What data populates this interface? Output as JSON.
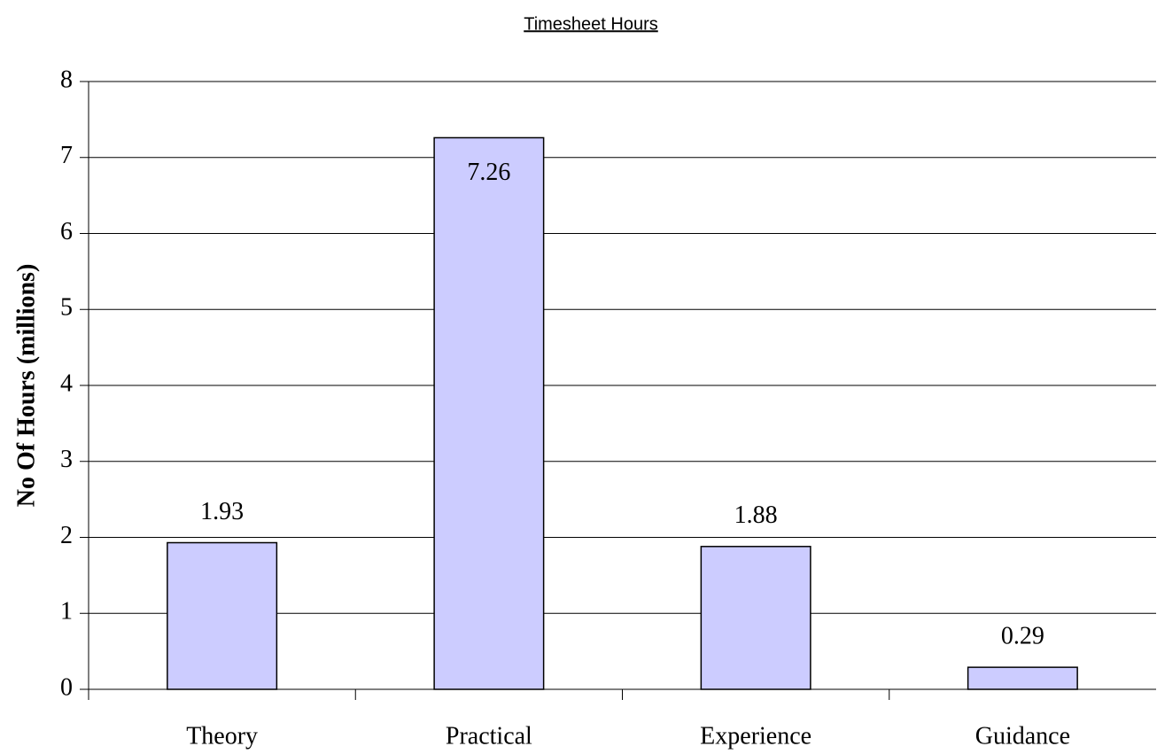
{
  "chart_data": {
    "type": "bar",
    "title": "Timesheet Hours",
    "y_label": "No Of Hours (millions)",
    "categories": [
      "Theory",
      "Practical",
      "Experience",
      "Guidance"
    ],
    "values": [
      1.93,
      7.26,
      1.88,
      0.29
    ],
    "color": "#ccccff",
    "ylim": [
      0,
      8
    ],
    "yticks": [
      0,
      1,
      2,
      3,
      4,
      5,
      6,
      7,
      8
    ],
    "grid": true
  }
}
